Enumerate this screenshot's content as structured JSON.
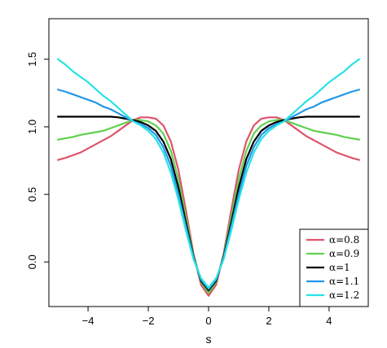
{
  "chart_data": {
    "type": "line",
    "title": "",
    "xlabel": "s",
    "ylabel": "",
    "xlim": [
      -5.3,
      5.3
    ],
    "ylim": [
      -0.33,
      1.8
    ],
    "x_ticks": [
      -4,
      -2,
      0,
      2,
      4
    ],
    "y_ticks": [
      0.0,
      0.5,
      1.0,
      1.5
    ],
    "x_tick_labels": [
      "−4",
      "−2",
      "0",
      "2",
      "4"
    ],
    "y_tick_labels": [
      "0.0",
      "0.5",
      "1.0",
      "1.5"
    ],
    "grid": false,
    "legend_position": "bottom-right",
    "x": [
      0,
      0.25,
      0.5,
      0.75,
      1,
      1.25,
      1.5,
      1.75,
      2,
      2.25,
      2.5,
      2.75,
      3,
      3.25,
      3.5,
      3.75,
      4,
      4.25,
      4.5,
      4.75,
      5
    ],
    "x_symmetric": true,
    "series": [
      {
        "name": "α=0.8",
        "color": "#DF536B",
        "values": [
          -0.25,
          -0.17,
          0.06,
          0.38,
          0.68,
          0.89,
          1.01,
          1.06,
          1.07,
          1.07,
          1.05,
          1.01,
          0.97,
          0.93,
          0.9,
          0.87,
          0.84,
          0.81,
          0.79,
          0.77,
          0.755
        ]
      },
      {
        "name": "α=0.9",
        "color": "#61D04F",
        "values": [
          -0.23,
          -0.15,
          0.05,
          0.33,
          0.61,
          0.82,
          0.95,
          1.01,
          1.04,
          1.05,
          1.05,
          1.03,
          1.01,
          0.99,
          0.97,
          0.96,
          0.95,
          0.94,
          0.925,
          0.915,
          0.905
        ]
      },
      {
        "name": "α=1",
        "color": "#000000",
        "values": [
          -0.21,
          -0.14,
          0.04,
          0.29,
          0.55,
          0.76,
          0.89,
          0.97,
          1.01,
          1.035,
          1.05,
          1.06,
          1.07,
          1.075,
          1.075,
          1.075,
          1.075,
          1.075,
          1.075,
          1.075,
          1.075
        ]
      },
      {
        "name": "α=1.1",
        "color": "#2297E6",
        "values": [
          -0.2,
          -0.13,
          0.03,
          0.26,
          0.5,
          0.71,
          0.85,
          0.94,
          0.99,
          1.02,
          1.04,
          1.07,
          1.1,
          1.13,
          1.15,
          1.18,
          1.2,
          1.22,
          1.24,
          1.26,
          1.275
        ]
      },
      {
        "name": "α=1.2",
        "color": "#28E2E5",
        "values": [
          -0.19,
          -0.12,
          0.02,
          0.23,
          0.46,
          0.66,
          0.81,
          0.91,
          0.97,
          1.01,
          1.04,
          1.09,
          1.14,
          1.19,
          1.23,
          1.28,
          1.33,
          1.37,
          1.41,
          1.46,
          1.5
        ]
      }
    ]
  }
}
